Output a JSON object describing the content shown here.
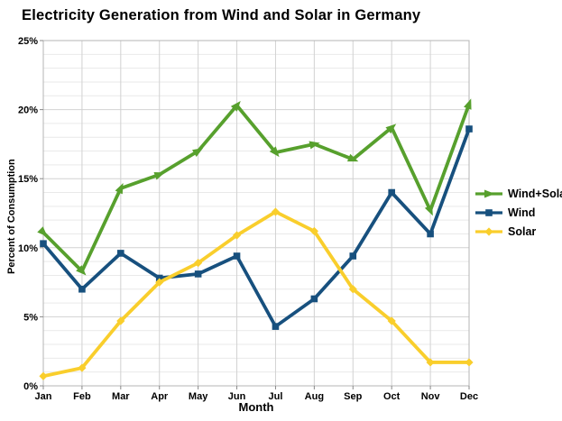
{
  "title": "Electricity Generation from Wind and Solar in Germany",
  "chart_data": {
    "type": "line",
    "x": [
      "Jan",
      "Feb",
      "Mar",
      "Apr",
      "May",
      "Jun",
      "Jul",
      "Aug",
      "Sep",
      "Oct",
      "Nov",
      "Dec"
    ],
    "xlabel": "Month",
    "ylabel": "Percent of Consumption",
    "ylim": [
      0,
      25
    ],
    "ytick_major_step": 5,
    "ytick_minor_step": 1,
    "ytick_labels": [
      "0%",
      "5%",
      "10%",
      "15%",
      "20%",
      "25%"
    ],
    "grid": true,
    "legend_position": "right",
    "series": [
      {
        "name": "Wind+Solar",
        "color": "#57A02D",
        "marker": "arrow",
        "values": [
          11.1,
          8.3,
          14.3,
          15.3,
          17.0,
          20.3,
          16.9,
          17.5,
          16.4,
          18.7,
          12.7,
          20.4
        ]
      },
      {
        "name": "Wind",
        "color": "#17507E",
        "marker": "square",
        "values": [
          10.3,
          7.0,
          9.6,
          7.8,
          8.1,
          9.4,
          4.3,
          6.3,
          9.4,
          14.0,
          11.0,
          18.6
        ]
      },
      {
        "name": "Solar",
        "color": "#F9CE2C",
        "marker": "diamond",
        "values": [
          0.7,
          1.3,
          4.7,
          7.5,
          8.9,
          10.9,
          12.6,
          11.2,
          7.0,
          4.7,
          1.7,
          1.7
        ]
      }
    ]
  }
}
